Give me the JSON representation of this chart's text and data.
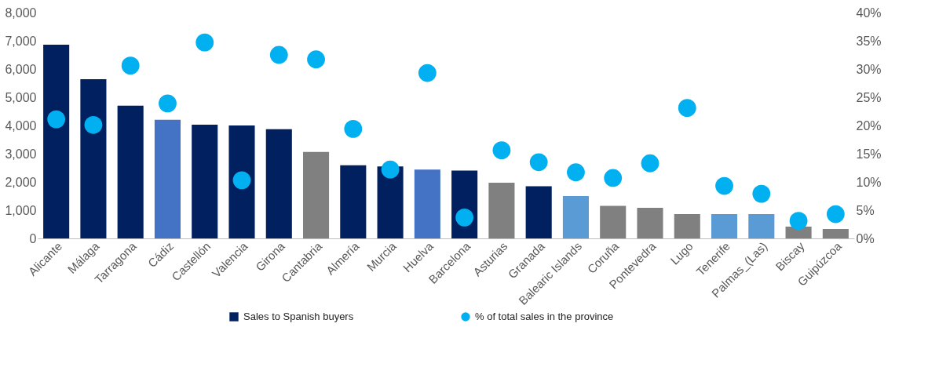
{
  "chart_data": {
    "type": "bar",
    "categories": [
      "Alicante",
      "Málaga",
      "Tarragona",
      "Cádiz",
      "Castellón",
      "Valencia",
      "Girona",
      "Cantabria",
      "Almería",
      "Murcia",
      "Huelva",
      "Barcelona",
      "Asturias",
      "Granada",
      "Balearic Islands",
      "Coruña",
      "Pontevedra",
      "Lugo",
      "Tenerife",
      "Palmas_(Las)",
      "Biscay",
      "Guipúzcoa"
    ],
    "series": [
      {
        "name": "Sales to Spanish buyers",
        "color": "#002060",
        "colors": [
          "#002060",
          "#002060",
          "#002060",
          "#4472c4",
          "#002060",
          "#002060",
          "#002060",
          "#808080",
          "#002060",
          "#002060",
          "#4472c4",
          "#002060",
          "#808080",
          "#002060",
          "#5b9bd5",
          "#808080",
          "#808080",
          "#808080",
          "#5b9bd5",
          "#5b9bd5",
          "#808080",
          "#808080"
        ],
        "values": [
          6860,
          5640,
          4700,
          4200,
          4030,
          4000,
          3870,
          3060,
          2590,
          2550,
          2440,
          2400,
          1970,
          1850,
          1500,
          1150,
          1080,
          860,
          860,
          860,
          420,
          330
        ]
      },
      {
        "name": "% of total sales in the province",
        "type": "scatter",
        "axis": "y2",
        "color": "#00b0f0",
        "values": [
          21.1,
          20.1,
          30.6,
          23.9,
          34.7,
          10.3,
          32.5,
          31.7,
          19.4,
          12.2,
          29.3,
          3.7,
          15.6,
          13.5,
          11.7,
          10.7,
          13.3,
          23.1,
          9.3,
          7.9,
          3.1,
          4.3
        ]
      }
    ],
    "ylim": [
      0,
      8000
    ],
    "yticks": [
      0,
      {
        "value": 1000,
        "label": "1,000"
      },
      {
        "value": 2000,
        "label": "2,000"
      },
      {
        "value": 3000,
        "label": "3,000"
      },
      {
        "value": 4000,
        "label": "4,000"
      },
      {
        "value": 5000,
        "label": "5,000"
      },
      {
        "value": 6000,
        "label": "6,000"
      },
      {
        "value": 7000,
        "label": "7,000"
      },
      {
        "value": 8000,
        "label": "8,000"
      }
    ],
    "y2lim": [
      0,
      40
    ],
    "y2ticks": [
      {
        "value": 0,
        "label": "0%"
      },
      {
        "value": 5,
        "label": "5%"
      },
      {
        "value": 10,
        "label": "10%"
      },
      {
        "value": 15,
        "label": "15%"
      },
      {
        "value": 20,
        "label": "20%"
      },
      {
        "value": 25,
        "label": "25%"
      },
      {
        "value": 30,
        "label": "30%"
      },
      {
        "value": 35,
        "label": "35%"
      },
      {
        "value": 40,
        "label": "40%"
      }
    ],
    "marker": "circle",
    "grid": false,
    "legend": "bottom"
  }
}
